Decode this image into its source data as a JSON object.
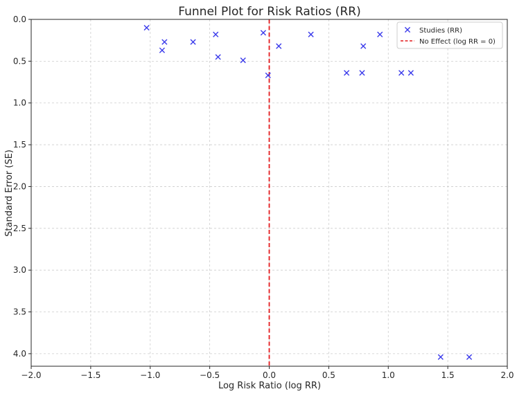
{
  "chart_data": {
    "type": "scatter",
    "title": "Funnel Plot for Risk Ratios (RR)",
    "xlabel": "Log Risk Ratio (log RR)",
    "ylabel": "Standard Error (SE)",
    "xlim": [
      -2.0,
      2.0
    ],
    "ylim": [
      4.15,
      0.0
    ],
    "y_inverted": true,
    "grid": true,
    "legend_position": "top-right",
    "x_ticks": [
      -2.0,
      -1.5,
      -1.0,
      -0.5,
      0.0,
      0.5,
      1.0,
      1.5,
      2.0
    ],
    "x_tick_labels": [
      "−2.0",
      "−1.5",
      "−1.0",
      "−0.5",
      "0.0",
      "0.5",
      "1.0",
      "1.5",
      "2.0"
    ],
    "y_ticks": [
      0.0,
      0.5,
      1.0,
      1.5,
      2.0,
      2.5,
      3.0,
      3.5,
      4.0
    ],
    "y_tick_labels": [
      "0.0",
      "0.5",
      "1.0",
      "1.5",
      "2.0",
      "2.5",
      "3.0",
      "3.5",
      "4.0"
    ],
    "series": [
      {
        "name": "Studies (RR)",
        "marker": "x",
        "color": "#3a3aeb",
        "points": [
          {
            "x": -1.03,
            "y": 0.1
          },
          {
            "x": -0.9,
            "y": 0.37
          },
          {
            "x": -0.88,
            "y": 0.27
          },
          {
            "x": -0.64,
            "y": 0.27
          },
          {
            "x": -0.45,
            "y": 0.18
          },
          {
            "x": -0.43,
            "y": 0.45
          },
          {
            "x": -0.22,
            "y": 0.49
          },
          {
            "x": -0.05,
            "y": 0.16
          },
          {
            "x": -0.01,
            "y": 0.67
          },
          {
            "x": 0.08,
            "y": 0.32
          },
          {
            "x": 0.35,
            "y": 0.18
          },
          {
            "x": 0.65,
            "y": 0.64
          },
          {
            "x": 0.78,
            "y": 0.64
          },
          {
            "x": 0.79,
            "y": 0.32
          },
          {
            "x": 0.93,
            "y": 0.18
          },
          {
            "x": 1.11,
            "y": 0.64
          },
          {
            "x": 1.19,
            "y": 0.64
          },
          {
            "x": 1.44,
            "y": 4.04
          },
          {
            "x": 1.68,
            "y": 4.04
          }
        ]
      }
    ],
    "reference_line": {
      "name": "No Effect (log RR = 0)",
      "x": 0.0,
      "style": "dashed",
      "color": "#e41a1c"
    },
    "colors": {
      "axis": "#262626",
      "grid": "#cccccc",
      "legend_border": "#cccccc"
    }
  }
}
